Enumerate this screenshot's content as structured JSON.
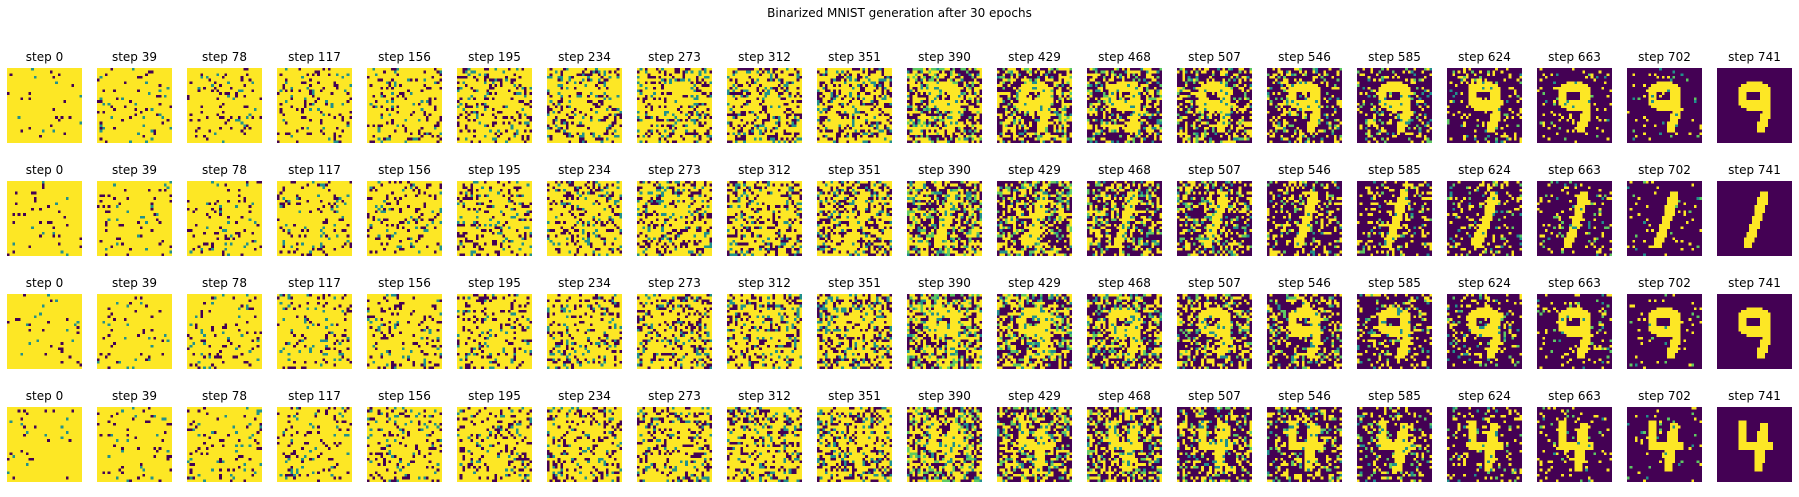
{
  "figure": {
    "title": "Binarized MNIST generation after 30 epochs",
    "colors": {
      "foreground": "#fde725",
      "background": "#440154",
      "mid": "#21918c",
      "light": "#5ec962"
    },
    "grid_resolution": 28,
    "rows": [
      {
        "digit": "9",
        "steps": [
          "step 0",
          "step 39",
          "step 78",
          "step 117",
          "step 156",
          "step 195",
          "step 234",
          "step 273",
          "step 312",
          "step 351",
          "step 390",
          "step 429",
          "step 468",
          "step 507",
          "step 546",
          "step 585",
          "step 624",
          "step 663",
          "step 702",
          "step 741"
        ]
      },
      {
        "digit": "1",
        "steps": [
          "step 0",
          "step 39",
          "step 78",
          "step 117",
          "step 156",
          "step 195",
          "step 234",
          "step 273",
          "step 312",
          "step 351",
          "step 390",
          "step 429",
          "step 468",
          "step 507",
          "step 546",
          "step 585",
          "step 624",
          "step 663",
          "step 702",
          "step 741"
        ]
      },
      {
        "digit": "9",
        "steps": [
          "step 0",
          "step 39",
          "step 78",
          "step 117",
          "step 156",
          "step 195",
          "step 234",
          "step 273",
          "step 312",
          "step 351",
          "step 390",
          "step 429",
          "step 468",
          "step 507",
          "step 546",
          "step 585",
          "step 624",
          "step 663",
          "step 702",
          "step 741"
        ]
      },
      {
        "digit": "4",
        "steps": [
          "step 0",
          "step 39",
          "step 78",
          "step 117",
          "step 156",
          "step 195",
          "step 234",
          "step 273",
          "step 312",
          "step 351",
          "step 390",
          "step 429",
          "step 468",
          "step 507",
          "step 546",
          "step 585",
          "step 624",
          "step 663",
          "step 702",
          "step 741"
        ]
      }
    ]
  }
}
